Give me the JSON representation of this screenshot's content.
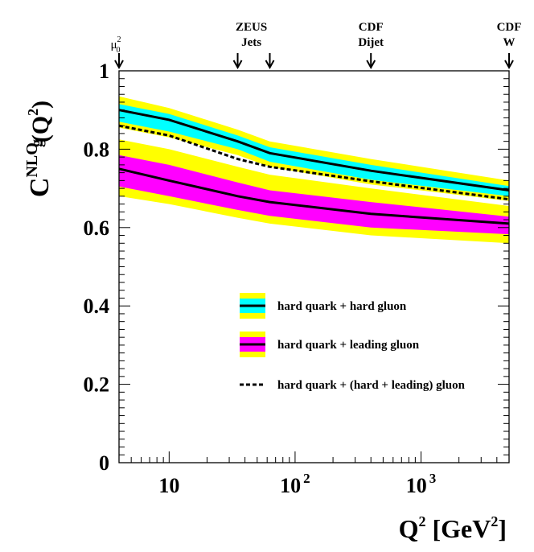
{
  "chart_data": {
    "type": "area",
    "xscale": "log",
    "xlim": [
      4,
      5000
    ],
    "ylim": [
      0,
      1
    ],
    "grid": false,
    "legend_placement": "center",
    "xlabel": {
      "base": "Q",
      "sup1": "2",
      "mid": " [GeV",
      "sup2": "2",
      "end": "]"
    },
    "ylabel": {
      "base": "C",
      "sup": "NLO",
      "sub": "g",
      "paren": "(Q",
      "paren_sup": "2",
      "close": ")"
    },
    "yticks": [
      {
        "value": 0,
        "label": "0"
      },
      {
        "value": 0.2,
        "label": "0.2"
      },
      {
        "value": 0.4,
        "label": "0.4"
      },
      {
        "value": 0.6,
        "label": "0.6"
      },
      {
        "value": 0.8,
        "label": "0.8"
      },
      {
        "value": 1,
        "label": "1"
      }
    ],
    "xticks": [
      {
        "value": 10,
        "base": "10",
        "exp": ""
      },
      {
        "value": 100,
        "base": "10",
        "exp": "2"
      },
      {
        "value": 1000,
        "base": "10",
        "exp": "3"
      }
    ],
    "x": [
      4,
      10,
      35,
      63,
      400,
      5000
    ],
    "series": [
      {
        "name": "hard quark + hard gluon",
        "style": "solid",
        "line_color": "#000000",
        "inner_color": "#00ffff",
        "outer_color": "#ffff00",
        "center": [
          0.9,
          0.875,
          0.82,
          0.79,
          0.745,
          0.695
        ],
        "inner_upper": [
          0.915,
          0.89,
          0.835,
          0.805,
          0.76,
          0.706
        ],
        "inner_lower": [
          0.87,
          0.845,
          0.8,
          0.768,
          0.722,
          0.68
        ],
        "outer_upper": [
          0.935,
          0.905,
          0.85,
          0.82,
          0.775,
          0.72
        ],
        "outer_lower": [
          0.855,
          0.83,
          0.785,
          0.755,
          0.71,
          0.668
        ]
      },
      {
        "name": "hard quark + leading gluon",
        "style": "solid",
        "line_color": "#000000",
        "inner_color": "#ff00ff",
        "outer_color": "#ffff00",
        "center": [
          0.75,
          0.72,
          0.68,
          0.665,
          0.635,
          0.61
        ],
        "inner_upper": [
          0.785,
          0.76,
          0.715,
          0.695,
          0.665,
          0.628
        ],
        "inner_lower": [
          0.705,
          0.68,
          0.645,
          0.63,
          0.6,
          0.583
        ],
        "outer_upper": [
          0.825,
          0.8,
          0.755,
          0.735,
          0.7,
          0.655
        ],
        "outer_lower": [
          0.68,
          0.66,
          0.625,
          0.61,
          0.58,
          0.56
        ]
      },
      {
        "name": "hard quark + (hard + leading) gluon",
        "style": "dashed",
        "line_color": "#000000",
        "center": [
          0.86,
          0.835,
          0.775,
          0.755,
          0.718,
          0.672
        ]
      }
    ],
    "annotations": [
      {
        "x": 4,
        "lines": [
          "μ"
        ],
        "mu_sup": "2",
        "mu_sub": "0"
      },
      {
        "x": 35,
        "lines": []
      },
      {
        "x": 63,
        "lines": []
      },
      {
        "x": 45,
        "lines": [
          "ZEUS",
          "Jets"
        ],
        "arrows": [
          35,
          63
        ]
      },
      {
        "x": 400,
        "lines": [
          "CDF",
          "Dijet"
        ]
      },
      {
        "x": 5000,
        "lines": [
          "CDF",
          "W"
        ]
      }
    ]
  }
}
